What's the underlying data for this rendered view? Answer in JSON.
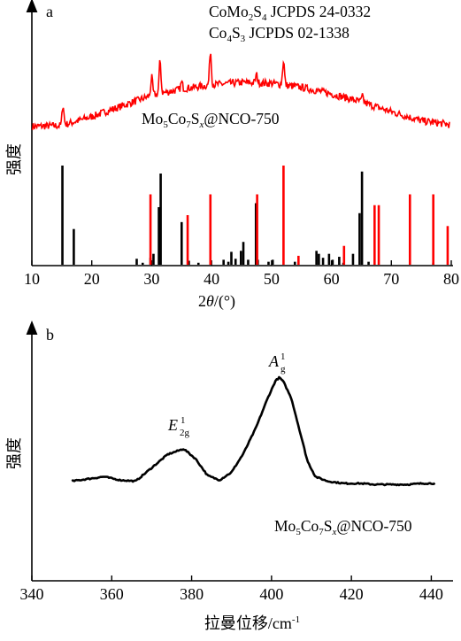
{
  "chart_data": [
    {
      "panel_label": "a",
      "type": "line",
      "xlabel": "2θ/(°)",
      "xlabel_parts": {
        "pre": "2",
        "theta": "θ",
        "post": "/(°)"
      },
      "ylabel": "强度",
      "xlim": [
        10,
        80
      ],
      "xticks": [
        10,
        20,
        30,
        40,
        50,
        60,
        70,
        80
      ],
      "legend": {
        "entries": [
          {
            "name": "CoMo2S4 JCPDS 24-0332",
            "parts": [
              "CoMo",
              "2",
              "S",
              "4",
              " JCPDS 24-0332"
            ],
            "color": "#000000"
          },
          {
            "name": "Co4S3 JCPDS 02-1338",
            "parts": [
              "Co",
              "4",
              "S",
              "3",
              " JCPDS 02-1338"
            ],
            "color": "#ff0000"
          }
        ],
        "placement": "top-right"
      },
      "sample_label": "Mo5Co7Sx@NCO-750",
      "sample_label_parts": {
        "a": "Mo",
        "b": "5",
        "c": "Co",
        "d": "7",
        "e": "S",
        "f": "x",
        "g": "@NCO-750"
      },
      "series": [
        {
          "name": "Mo5Co7Sx@NCO-750",
          "color": "#ff0000",
          "baseline_x": [
            10,
            15,
            20,
            25,
            30,
            35,
            40,
            45,
            50,
            55,
            60,
            65,
            70,
            75,
            80
          ],
          "baseline_y": [
            0.1,
            0.11,
            0.22,
            0.35,
            0.48,
            0.56,
            0.61,
            0.64,
            0.63,
            0.58,
            0.5,
            0.4,
            0.28,
            0.17,
            0.12
          ],
          "peaks": [
            {
              "x": 15.2,
              "h": 0.25
            },
            {
              "x": 30.0,
              "h": 0.22
            },
            {
              "x": 31.4,
              "h": 0.4
            },
            {
              "x": 35.0,
              "h": 0.08
            },
            {
              "x": 39.8,
              "h": 0.42
            },
            {
              "x": 47.5,
              "h": 0.1
            },
            {
              "x": 52.0,
              "h": 0.3
            },
            {
              "x": 65.2,
              "h": 0.07
            }
          ]
        }
      ],
      "reference_lines": [
        {
          "name": "CoMo2S4 JCPDS 24-0332",
          "color": "#000000",
          "positions": [
            15.1,
            17.0,
            27.5,
            28.5,
            29.8,
            30.3,
            31.2,
            31.5,
            35.0,
            36.2,
            37.8,
            42.0,
            42.8,
            43.3,
            44.0,
            44.9,
            45.3,
            46.1,
            47.4,
            47.7,
            49.5,
            50.2,
            53.9,
            57.5,
            57.9,
            58.6,
            59.6,
            60.2,
            61.3,
            62.0,
            63.6,
            64.7,
            65.1,
            66.2,
            77.0
          ],
          "intensities": [
            1.0,
            0.36,
            0.06,
            0.02,
            0.07,
            0.11,
            0.58,
            0.92,
            0.43,
            0.04,
            0.02,
            0.05,
            0.03,
            0.13,
            0.06,
            0.14,
            0.23,
            0.05,
            0.62,
            0.05,
            0.03,
            0.05,
            0.03,
            0.14,
            0.11,
            0.07,
            0.11,
            0.05,
            0.08,
            0.02,
            0.11,
            0.52,
            0.94,
            0.03,
            0.02
          ]
        },
        {
          "name": "Co4S3 JCPDS 02-1338",
          "color": "#ff0000",
          "positions": [
            29.8,
            36.0,
            39.8,
            47.6,
            52.0,
            54.5,
            62.1,
            67.2,
            67.9,
            73.1,
            77.0,
            79.4
          ],
          "intensities": [
            0.71,
            0.5,
            0.71,
            0.71,
            1.0,
            0.09,
            0.19,
            0.6,
            0.6,
            0.71,
            0.71,
            0.39
          ]
        }
      ]
    },
    {
      "panel_label": "b",
      "type": "line",
      "xlabel": "拉曼位移/cm-1",
      "xlabel_parts": {
        "main": "拉曼位移/cm",
        "sup": "-1"
      },
      "ylabel": "强度",
      "xlim": [
        340,
        445
      ],
      "xticks": [
        340,
        360,
        380,
        400,
        420,
        440
      ],
      "sample_label": "Mo5Co7Sx@NCO-750",
      "sample_label_parts": {
        "a": "Mo",
        "b": "5",
        "c": "Co",
        "d": "7",
        "e": "S",
        "f": "x",
        "g": "@NCO-750"
      },
      "annotations": [
        {
          "text": "E2g1",
          "base": "E",
          "sup": "1",
          "sub": "2g",
          "x": 377.5
        },
        {
          "text": "Ag1",
          "base": "A",
          "sup": "1",
          "sub": "g",
          "x": 402
        }
      ],
      "series": [
        {
          "name": "Mo5Co7Sx@NCO-750",
          "color": "#000000",
          "x": [
            350,
            354,
            358,
            362,
            366,
            370,
            374,
            378,
            381,
            384,
            387,
            390,
            393,
            396,
            399,
            401,
            402,
            403,
            405,
            407,
            409,
            411,
            414,
            418,
            422,
            426,
            430,
            434,
            438,
            441
          ],
          "y": [
            0.02,
            0.04,
            0.06,
            0.03,
            0.02,
            0.14,
            0.26,
            0.31,
            0.22,
            0.07,
            0.03,
            0.1,
            0.27,
            0.49,
            0.76,
            0.92,
            0.95,
            0.91,
            0.76,
            0.48,
            0.2,
            0.06,
            0.02,
            0.0,
            0.0,
            -0.01,
            -0.01,
            -0.01,
            0.0,
            0.0
          ]
        }
      ]
    }
  ]
}
